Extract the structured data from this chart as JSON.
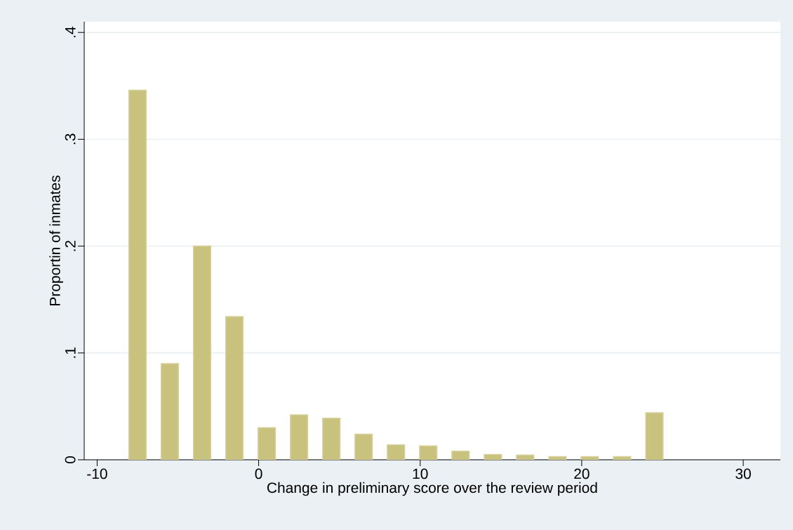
{
  "chart_data": {
    "type": "bar",
    "xlabel": "Change in preliminary score over the review period",
    "ylabel": "Proportin of inmates",
    "x": [
      -7.5,
      -5.5,
      -3.5,
      -1.5,
      0.5,
      2.5,
      4.5,
      6.5,
      8.5,
      10.5,
      12.5,
      14.5,
      16.5,
      18.5,
      20.5,
      22.5,
      24.5
    ],
    "values": [
      0.346,
      0.09,
      0.2,
      0.134,
      0.03,
      0.042,
      0.039,
      0.024,
      0.014,
      0.013,
      0.008,
      0.005,
      0.0045,
      0.003,
      0.003,
      0.003,
      0.044
    ],
    "color": "#c9c27e",
    "xlim": [
      -10.8,
      32.3
    ],
    "ylim": [
      0,
      0.41
    ],
    "xticks": [
      -10,
      0,
      10,
      20,
      30
    ],
    "yticks": [
      0,
      {
        "value": 0.1,
        "label": ".1"
      },
      {
        "value": 0.2,
        "label": ".2"
      },
      {
        "value": 0.3,
        "label": ".3"
      },
      {
        "value": 0.4,
        "label": ".4"
      }
    ],
    "grid": "y"
  }
}
